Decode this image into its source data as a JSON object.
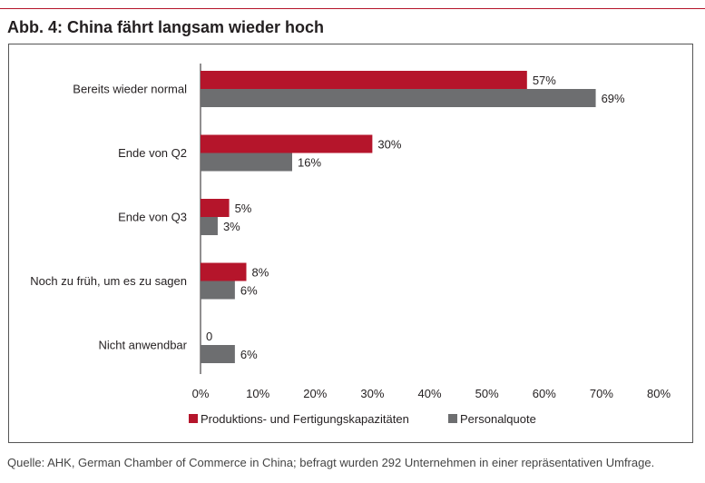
{
  "figure": {
    "title": "Abb. 4: China fährt langsam wieder hoch",
    "source": "Quelle: AHK, German Chamber of Commerce in China; befragt wurden 292 Unternehmen in einer repräsentativen Umfrage."
  },
  "chart_data": {
    "type": "bar",
    "orientation": "horizontal",
    "title": "",
    "xlabel": "",
    "ylabel": "",
    "categories": [
      "Bereits wieder normal",
      "Ende von Q2",
      "Ende von Q3",
      "Noch zu früh, um es zu sagen",
      "Nicht anwendbar"
    ],
    "series": [
      {
        "name": "Produktions- und Fertigungskapazitäten",
        "color": "#b5152b",
        "values": [
          57,
          30,
          5,
          8,
          0
        ],
        "labels": [
          "57%",
          "30%",
          "5%",
          "8%",
          "0"
        ]
      },
      {
        "name": "Personalquote",
        "color": "#6d6e70",
        "values": [
          69,
          16,
          3,
          6,
          6
        ],
        "labels": [
          "69%",
          "16%",
          "3%",
          "6%",
          "6%"
        ]
      }
    ],
    "xlim": [
      0,
      80
    ],
    "xticks": [
      0,
      10,
      20,
      30,
      40,
      50,
      60,
      70,
      80
    ],
    "xtick_labels": [
      "0%",
      "10%",
      "20%",
      "30%",
      "40%",
      "50%",
      "60%",
      "70%",
      "80%"
    ],
    "grid": false,
    "legend": "bottom"
  }
}
